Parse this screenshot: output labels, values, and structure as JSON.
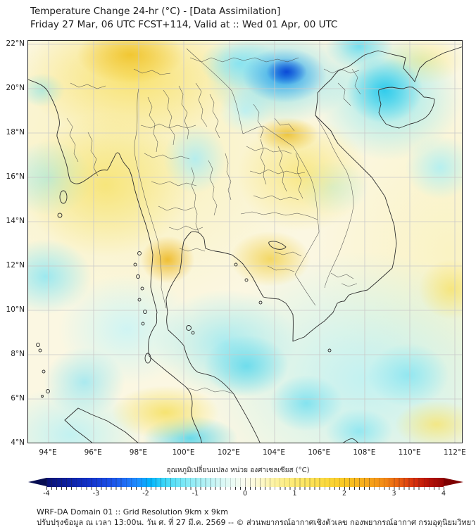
{
  "header": {
    "title": "Temperature Change 24-hr (°C) - [Data Assimilation]",
    "subtitle": "Friday 27 Mar, 06 UTC FCST+114, Valid at :: Wed 01 Apr, 00 UTC"
  },
  "map": {
    "y_axis_labels": [
      "22°N",
      "20°N",
      "18°N",
      "16°N",
      "14°N",
      "12°N",
      "10°N",
      "8°N",
      "6°N",
      "4°N"
    ],
    "x_axis_labels": [
      "94°E",
      "96°E",
      "98°E",
      "100°E",
      "102°E",
      "104°E",
      "106°E",
      "108°E",
      "110°E",
      "112°E"
    ]
  },
  "colorbar": {
    "label": "อุณหภูมิเปลี่ยนแปลง หน่วย องศาเซลเซียส (°C)",
    "tick_labels": [
      "-4",
      "-3",
      "-2",
      "-1",
      "0",
      "1",
      "2",
      "3",
      "4"
    ],
    "range_min": -4,
    "range_max": 4,
    "colors": {
      "neg_extreme": "#0a1172",
      "neg_strong": "#1333cc",
      "neg_mid": "#1e90ff",
      "neg_weak": "#7fe9f6",
      "zero": "#fdfdf0",
      "pos_weak": "#fdec7d",
      "pos_mid": "#f9c823",
      "pos_strong": "#e85c10",
      "pos_extreme": "#970404"
    }
  },
  "footer": {
    "line1": "WRF-DA Domain 01 :: Grid Resolution 9km x 9km",
    "line2": "ปรับปรุงข้อมูล ณ เวลา 13:00น. วัน ศ. ที่ 27 มี.ค. 2569 -- © ส่วนพยากรณ์อากาศเชิงตัวเลข กองพยากรณ์อากาศ กรมอุตุนิยมวิทยา"
  }
}
